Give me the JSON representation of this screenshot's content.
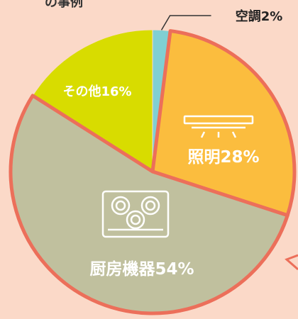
{
  "chart_data": {
    "type": "pie",
    "title": "の事例",
    "categories": [
      "空調",
      "照明",
      "厨房機器",
      "その他"
    ],
    "values": [
      2,
      28,
      54,
      16
    ],
    "value_labels": [
      "2%",
      "28%",
      "54%",
      "16%"
    ],
    "colors": [
      "#80cfd3",
      "#fbbd3e",
      "#c0c09e",
      "#d8dc00"
    ]
  }
}
